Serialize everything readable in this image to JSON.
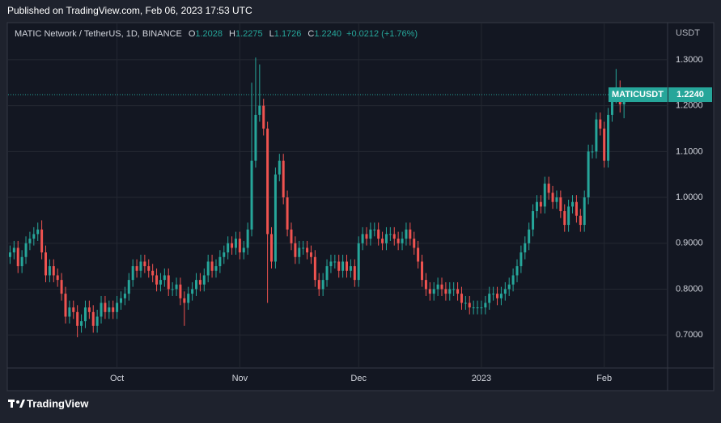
{
  "header": {
    "published": "Published on TradingView.com, Feb 06, 2023 17:53 UTC"
  },
  "footer": {
    "brand": "TradingView"
  },
  "chart_data": {
    "type": "candlestick",
    "title": "MATIC Network / TetherUS, 1D, BINANCE",
    "legend": [
      {
        "key": "O",
        "value": "1.2028"
      },
      {
        "key": "H",
        "value": "1.2275"
      },
      {
        "key": "L",
        "value": "1.1726"
      },
      {
        "key": "C",
        "value": "1.2240"
      }
    ],
    "change": "+0.0212 (+1.76%)",
    "y_unit": "USDT",
    "last_price_symbol": "MATICUSDT",
    "last_price_label": "1.2240",
    "up_color": "#26a69a",
    "down_color": "#ef5350",
    "grid": true,
    "open": [
      0.87,
      0.88,
      0.89,
      0.85,
      0.87,
      0.9,
      0.91,
      0.92,
      0.93,
      0.88,
      0.83,
      0.85,
      0.83,
      0.82,
      0.79,
      0.74,
      0.76,
      0.75,
      0.72,
      0.73,
      0.76,
      0.75,
      0.72,
      0.74,
      0.77,
      0.75,
      0.76,
      0.75,
      0.77,
      0.78,
      0.79,
      0.82,
      0.85,
      0.84,
      0.86,
      0.85,
      0.84,
      0.83,
      0.81,
      0.82,
      0.83,
      0.8,
      0.8,
      0.81,
      0.78,
      0.77,
      0.79,
      0.8,
      0.82,
      0.81,
      0.83,
      0.86,
      0.84,
      0.85,
      0.87,
      0.88,
      0.9,
      0.89,
      0.91,
      0.88,
      0.89,
      0.93,
      1.08,
      1.18,
      1.2,
      1.15,
      0.92,
      0.86,
      1.05,
      1.08,
      1.0,
      0.93,
      0.9,
      0.87,
      0.89,
      0.89,
      0.88,
      0.87,
      0.82,
      0.8,
      0.82,
      0.85,
      0.86,
      0.86,
      0.84,
      0.86,
      0.84,
      0.85,
      0.82,
      0.9,
      0.92,
      0.91,
      0.93,
      0.93,
      0.91,
      0.9,
      0.92,
      0.92,
      0.91,
      0.9,
      0.91,
      0.93,
      0.91,
      0.89,
      0.86,
      0.82,
      0.8,
      0.79,
      0.8,
      0.81,
      0.8,
      0.79,
      0.8,
      0.8,
      0.79,
      0.77,
      0.77,
      0.76,
      0.76,
      0.76,
      0.76,
      0.77,
      0.79,
      0.79,
      0.78,
      0.79,
      0.8,
      0.81,
      0.83,
      0.85,
      0.88,
      0.9,
      0.93,
      0.97,
      0.99,
      0.98,
      1.03,
      1.01,
      0.99,
      1.0,
      0.97,
      0.94,
      0.98,
      0.99,
      0.96,
      0.94,
      1.0,
      1.1,
      1.1,
      1.17,
      1.15,
      1.08,
      1.18,
      1.22,
      1.24,
      1.2028
    ],
    "high": [
      0.895,
      0.905,
      0.905,
      0.885,
      0.915,
      0.925,
      0.935,
      0.945,
      0.95,
      0.895,
      0.865,
      0.865,
      0.845,
      0.835,
      0.805,
      0.775,
      0.775,
      0.765,
      0.745,
      0.775,
      0.775,
      0.765,
      0.755,
      0.785,
      0.785,
      0.775,
      0.775,
      0.785,
      0.795,
      0.805,
      0.835,
      0.865,
      0.865,
      0.875,
      0.875,
      0.865,
      0.855,
      0.845,
      0.835,
      0.845,
      0.845,
      0.815,
      0.825,
      0.825,
      0.795,
      0.805,
      0.815,
      0.835,
      0.835,
      0.845,
      0.875,
      0.875,
      0.865,
      0.885,
      0.895,
      0.915,
      0.915,
      0.925,
      0.925,
      0.905,
      0.945,
      1.25,
      1.305,
      1.29,
      1.215,
      1.165,
      0.935,
      1.065,
      1.095,
      1.095,
      1.015,
      0.945,
      0.915,
      0.905,
      0.905,
      0.905,
      0.895,
      0.885,
      0.835,
      0.835,
      0.865,
      0.875,
      0.875,
      0.875,
      0.875,
      0.875,
      0.865,
      0.865,
      0.915,
      0.935,
      0.935,
      0.945,
      0.945,
      0.945,
      0.925,
      0.935,
      0.935,
      0.935,
      0.925,
      0.925,
      0.945,
      0.945,
      0.925,
      0.905,
      0.875,
      0.835,
      0.815,
      0.815,
      0.825,
      0.825,
      0.815,
      0.815,
      0.815,
      0.815,
      0.805,
      0.785,
      0.785,
      0.775,
      0.775,
      0.775,
      0.785,
      0.805,
      0.805,
      0.805,
      0.805,
      0.815,
      0.825,
      0.845,
      0.865,
      0.895,
      0.915,
      0.945,
      0.985,
      1.005,
      1.005,
      1.045,
      1.045,
      1.025,
      1.015,
      1.015,
      0.985,
      0.995,
      1.005,
      1.005,
      0.975,
      1.015,
      1.115,
      1.115,
      1.185,
      1.185,
      1.165,
      1.195,
      1.235,
      1.28,
      1.255,
      1.2275
    ],
    "low": [
      0.855,
      0.865,
      0.835,
      0.835,
      0.855,
      0.885,
      0.895,
      0.905,
      0.865,
      0.815,
      0.815,
      0.815,
      0.805,
      0.775,
      0.725,
      0.725,
      0.735,
      0.695,
      0.705,
      0.715,
      0.735,
      0.705,
      0.705,
      0.725,
      0.735,
      0.735,
      0.735,
      0.735,
      0.755,
      0.765,
      0.775,
      0.805,
      0.825,
      0.825,
      0.835,
      0.825,
      0.815,
      0.795,
      0.795,
      0.805,
      0.785,
      0.785,
      0.785,
      0.765,
      0.72,
      0.755,
      0.775,
      0.785,
      0.795,
      0.795,
      0.815,
      0.825,
      0.825,
      0.835,
      0.855,
      0.865,
      0.875,
      0.875,
      0.865,
      0.865,
      0.875,
      0.915,
      1.065,
      1.165,
      1.135,
      0.77,
      0.845,
      0.845,
      1.035,
      0.985,
      0.915,
      0.885,
      0.855,
      0.855,
      0.875,
      0.865,
      0.855,
      0.805,
      0.785,
      0.785,
      0.805,
      0.835,
      0.845,
      0.825,
      0.825,
      0.825,
      0.825,
      0.805,
      0.805,
      0.885,
      0.895,
      0.895,
      0.915,
      0.895,
      0.885,
      0.885,
      0.905,
      0.895,
      0.885,
      0.885,
      0.895,
      0.895,
      0.875,
      0.845,
      0.805,
      0.785,
      0.775,
      0.775,
      0.785,
      0.785,
      0.775,
      0.775,
      0.785,
      0.775,
      0.755,
      0.755,
      0.745,
      0.745,
      0.745,
      0.745,
      0.745,
      0.755,
      0.775,
      0.765,
      0.765,
      0.775,
      0.785,
      0.795,
      0.815,
      0.835,
      0.865,
      0.885,
      0.915,
      0.955,
      0.965,
      0.965,
      0.995,
      0.975,
      0.975,
      0.955,
      0.925,
      0.925,
      0.965,
      0.945,
      0.925,
      0.925,
      0.985,
      1.085,
      1.085,
      1.135,
      1.065,
      1.065,
      1.165,
      1.205,
      1.185,
      1.1726
    ],
    "close": [
      0.88,
      0.89,
      0.85,
      0.87,
      0.9,
      0.91,
      0.92,
      0.93,
      0.88,
      0.83,
      0.85,
      0.83,
      0.82,
      0.79,
      0.74,
      0.76,
      0.75,
      0.72,
      0.73,
      0.76,
      0.75,
      0.72,
      0.74,
      0.77,
      0.75,
      0.76,
      0.75,
      0.77,
      0.78,
      0.79,
      0.82,
      0.85,
      0.84,
      0.86,
      0.85,
      0.84,
      0.83,
      0.81,
      0.82,
      0.83,
      0.8,
      0.8,
      0.81,
      0.78,
      0.77,
      0.79,
      0.8,
      0.82,
      0.81,
      0.83,
      0.86,
      0.84,
      0.85,
      0.87,
      0.88,
      0.9,
      0.89,
      0.91,
      0.88,
      0.89,
      0.93,
      1.08,
      1.18,
      1.2,
      1.15,
      0.92,
      0.86,
      1.05,
      1.08,
      1.0,
      0.93,
      0.9,
      0.87,
      0.89,
      0.89,
      0.88,
      0.87,
      0.82,
      0.8,
      0.82,
      0.85,
      0.86,
      0.86,
      0.84,
      0.86,
      0.84,
      0.85,
      0.82,
      0.9,
      0.92,
      0.91,
      0.93,
      0.93,
      0.91,
      0.9,
      0.92,
      0.92,
      0.91,
      0.9,
      0.91,
      0.93,
      0.91,
      0.89,
      0.86,
      0.82,
      0.8,
      0.79,
      0.8,
      0.81,
      0.8,
      0.79,
      0.8,
      0.8,
      0.79,
      0.77,
      0.77,
      0.76,
      0.76,
      0.76,
      0.76,
      0.77,
      0.79,
      0.79,
      0.78,
      0.79,
      0.8,
      0.81,
      0.83,
      0.85,
      0.88,
      0.9,
      0.93,
      0.97,
      0.99,
      0.98,
      1.03,
      1.01,
      0.99,
      1.0,
      0.97,
      0.94,
      0.98,
      0.99,
      0.96,
      0.94,
      1.0,
      1.1,
      1.1,
      1.17,
      1.15,
      1.08,
      1.18,
      1.22,
      1.24,
      1.2028,
      1.224
    ],
    "xlim": [
      -0.5,
      166
    ],
    "xticks": [
      {
        "value": 27,
        "label": "Oct"
      },
      {
        "value": 58,
        "label": "Nov"
      },
      {
        "value": 88,
        "label": "Dec"
      },
      {
        "value": 119,
        "label": "2023"
      },
      {
        "value": 150,
        "label": "Feb"
      }
    ],
    "ylim": [
      0.628,
      1.381
    ],
    "yticks": [
      {
        "value": 0.7,
        "label": "0.7000"
      },
      {
        "value": 0.8,
        "label": "0.8000"
      },
      {
        "value": 0.9,
        "label": "0.9000"
      },
      {
        "value": 1.0,
        "label": "1.0000"
      },
      {
        "value": 1.1,
        "label": "1.1000"
      },
      {
        "value": 1.2,
        "label": "1.2000"
      },
      {
        "value": 1.3,
        "label": "1.3000"
      }
    ]
  }
}
